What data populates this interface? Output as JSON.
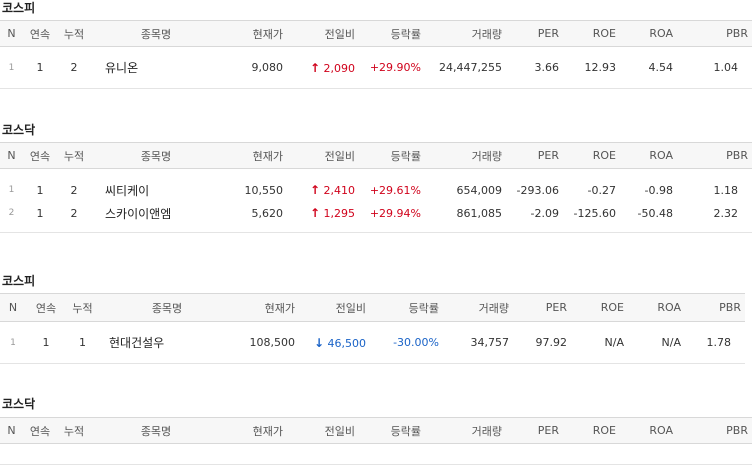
{
  "columns": [
    "N",
    "연속",
    "누적",
    "종목명",
    "현재가",
    "전일비",
    "등락률",
    "거래량",
    "PER",
    "ROE",
    "ROA",
    "PBR"
  ],
  "sections": [
    {
      "title": "코스피",
      "rows": [
        {
          "n": "1",
          "streak": "1",
          "total": "2",
          "name": "유니온",
          "price": "9,080",
          "dir": "up",
          "arrow": "↑",
          "change": "2,090",
          "rate": "+29.90%",
          "volume": "24,447,255",
          "per": "3.66",
          "roe": "12.93",
          "roa": "4.54",
          "pbr": "1.04"
        }
      ]
    },
    {
      "title": "코스닥",
      "rows": [
        {
          "n": "1",
          "streak": "1",
          "total": "2",
          "name": "씨티케이",
          "price": "10,550",
          "dir": "up",
          "arrow": "↑",
          "change": "2,410",
          "rate": "+29.61%",
          "volume": "654,009",
          "per": "-293.06",
          "roe": "-0.27",
          "roa": "-0.98",
          "pbr": "1.18"
        },
        {
          "n": "2",
          "streak": "1",
          "total": "2",
          "name": "스카이이앤엠",
          "price": "5,620",
          "dir": "up",
          "arrow": "↑",
          "change": "1,295",
          "rate": "+29.94%",
          "volume": "861,085",
          "per": "-2.09",
          "roe": "-125.60",
          "roa": "-50.48",
          "pbr": "2.32"
        }
      ]
    },
    {
      "title": "코스피",
      "rows": [
        {
          "n": "1",
          "streak": "1",
          "total": "1",
          "name": "현대건설우",
          "price": "108,500",
          "dir": "down",
          "arrow": "↓",
          "change": "46,500",
          "rate": "-30.00%",
          "volume": "34,757",
          "per": "97.92",
          "roe": "N/A",
          "roa": "N/A",
          "pbr": "1.78"
        }
      ]
    },
    {
      "title": "코스닥",
      "rows": []
    }
  ],
  "colors": {
    "up": "#d0021b",
    "down": "#1a63c7"
  }
}
